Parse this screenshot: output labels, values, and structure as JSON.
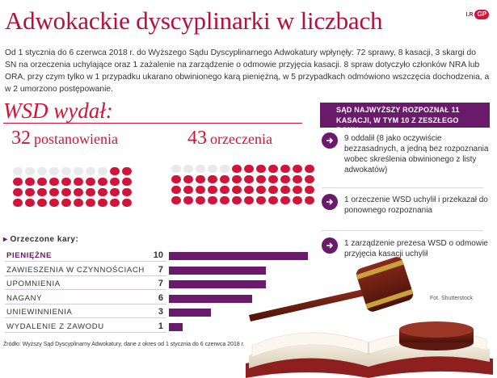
{
  "title": "Adwokackie dyscyplinarki w liczbach",
  "brand": {
    "prefix": "I.R",
    "logo": "GP"
  },
  "intro": "Od 1 stycznia do 6 czerwca 2018 r. do Wyższego Sądu Dyscyplinarnego Adwokatury wpłynęły: 72 sprawy, 8 kasacji, 3 skargi do SN na orzeczenia uchylające oraz 1 zażalenie na zarządzenie o odmowie przyjęcia kasacji. 8 spraw dotyczyło członków NRA lub ORA, przy czym tylko w 1 przypadku ukarano obwinionego karą pieniężną, w 5 przypadkach odmówiono wszczęcia dochodzenia, a w 2 umorzono postępowanie.",
  "wsd": {
    "heading": "WSD wydał:",
    "postanowienia": {
      "number": "32",
      "label": "postanowienia",
      "count": 32,
      "total": 40
    },
    "orzeczenia": {
      "number": "43",
      "label": "orzeczenia",
      "count": 43,
      "total": 48
    }
  },
  "kary": {
    "heading": "Orzeczone kary:",
    "max": 10,
    "rows": [
      {
        "label": "PIENIĘŻNE",
        "value": 10,
        "display": "10",
        "highlight": true
      },
      {
        "label": "ZAWIESZENIA W CZYNNOŚCIACH",
        "value": 7,
        "display": "7",
        "highlight": false
      },
      {
        "label": "UPOMNIENIA",
        "value": 7,
        "display": "7",
        "highlight": false
      },
      {
        "label": "NAGANY",
        "value": 6,
        "display": "6",
        "highlight": false
      },
      {
        "label": "UNIEWINNIENIA",
        "value": 3,
        "display": "3",
        "highlight": false
      },
      {
        "label": "WYDALENIE Z ZAWODU",
        "value": 1,
        "display": "1",
        "highlight": false
      }
    ]
  },
  "sn": {
    "heading": "SĄD NAJWYŻSZY ROZPOZNAŁ 11 KASACJI, W TYM 10 Z ZESZŁEGO ROKU:",
    "items": [
      "9 oddalił (8 jako oczywiście bezzasadnych, a jedną bez rozpoznania wobec skreślenia obwinionego z listy adwokatów)",
      "1 orzeczenie WSD uchylił i przekazał do ponownego rozpoznania",
      "1 zarządzenie prezesa WSD o odmowie przyjęcia kasacji uchylił"
    ]
  },
  "photo_credit": "Fot. Shutterstock",
  "source": "Źródło: Wyższy Sąd Dyscyplinarny Adwokatury, dane z okres od 1 stycznia do 6 czerwca 2018 r.",
  "colors": {
    "accent": "#d2143a",
    "title": "#b5103c",
    "purple": "#6a1a6a",
    "ghost": "#e9e9e9"
  }
}
